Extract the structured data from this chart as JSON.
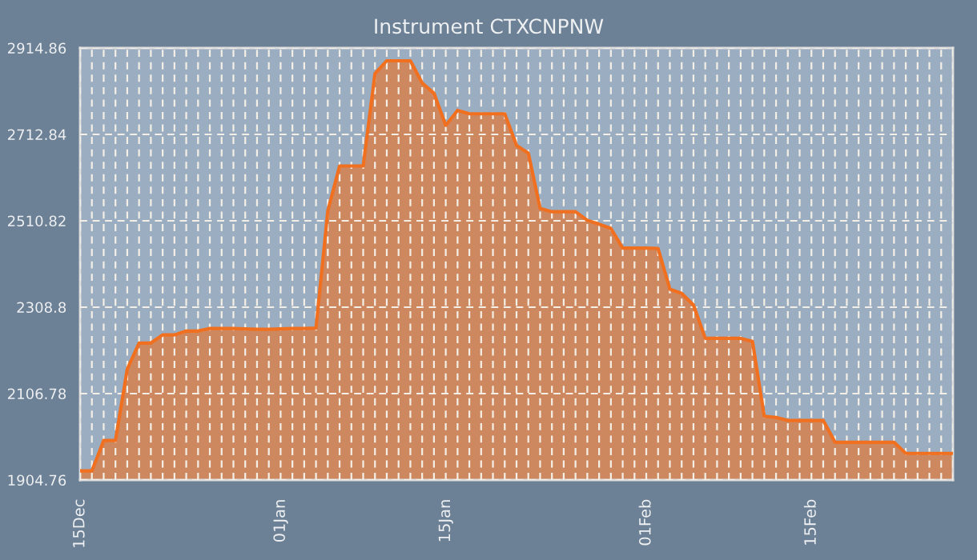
{
  "chart_data": {
    "type": "area",
    "title": "Instrument CTXCNPNW",
    "categories": [
      "15Dec",
      null,
      null,
      null,
      null,
      null,
      null,
      null,
      null,
      null,
      null,
      null,
      null,
      null,
      null,
      null,
      null,
      "01Jan",
      null,
      null,
      null,
      null,
      null,
      null,
      null,
      null,
      null,
      null,
      null,
      null,
      null,
      "15Jan",
      null,
      null,
      null,
      null,
      null,
      null,
      null,
      null,
      null,
      null,
      null,
      null,
      null,
      null,
      null,
      null,
      "01Feb",
      null,
      null,
      null,
      null,
      null,
      null,
      null,
      null,
      null,
      null,
      null,
      null,
      null,
      "15Feb",
      null,
      null,
      null,
      null,
      null,
      null,
      null,
      null,
      null,
      null,
      null,
      null
    ],
    "series": [
      {
        "color": "#f07020",
        "values": [
          1926,
          1926,
          1997,
          1997,
          2164,
          2225,
          2225,
          2244,
          2244,
          2253,
          2253,
          2259,
          2259,
          2259,
          2258,
          2257,
          2257,
          2258,
          2259,
          2259,
          2260,
          2534,
          2639,
          2639,
          2639,
          2855,
          2885,
          2885,
          2885,
          2833,
          2809,
          2734,
          2769,
          2761,
          2761,
          2761,
          2761,
          2687,
          2669,
          2540,
          2532,
          2532,
          2532,
          2512,
          2503,
          2493,
          2447,
          2447,
          2447,
          2446,
          2351,
          2341,
          2314,
          2236,
          2236,
          2236,
          2236,
          2229,
          2054,
          2051,
          2044,
          2044,
          2044,
          2044,
          1993,
          1993,
          1993,
          1993,
          1993,
          1993,
          1967,
          1967,
          1967,
          1967,
          1967
        ]
      }
    ],
    "ylim": [
      1904.76,
      2914.86
    ],
    "yticks": [
      1904.76,
      2106.78,
      2308.8,
      2510.82,
      2712.84,
      2914.86
    ],
    "grid": true
  }
}
